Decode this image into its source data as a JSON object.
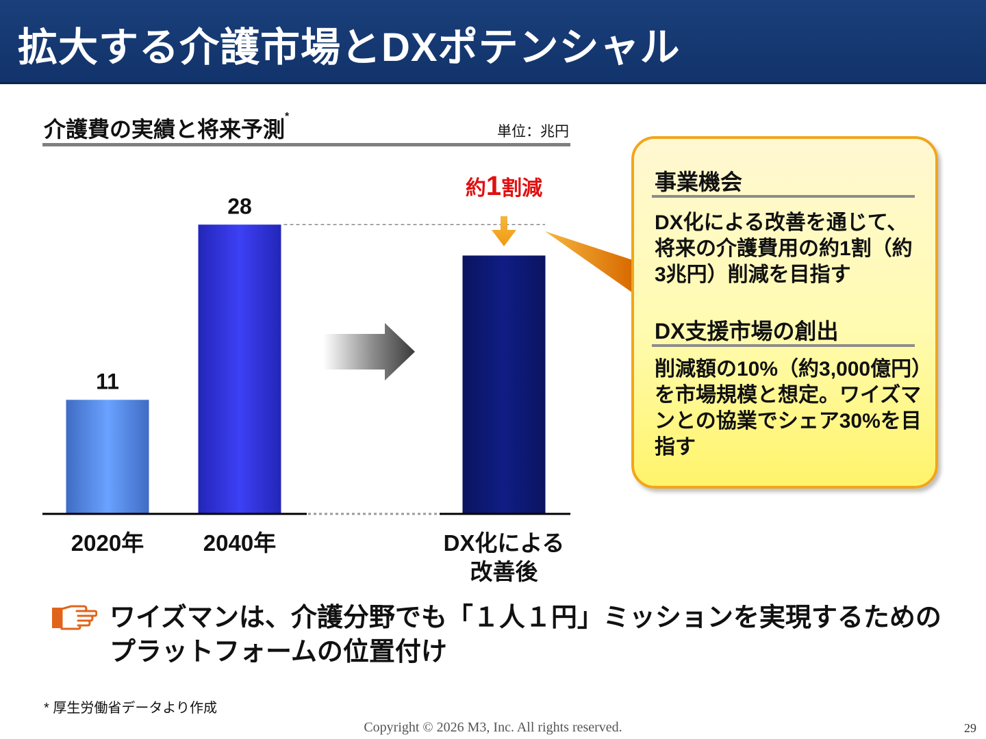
{
  "slide": {
    "title": "拡大する介護市場とDXポテンシャル",
    "page_number": "29",
    "copyright": "Copyright © 2026  M3, Inc.  All rights reserved.",
    "footnote": "*  厚生労働省データより作成",
    "header_color": "#173b74"
  },
  "chart_panel": {
    "title": "介護費の実績と将来予測",
    "title_mark": "*",
    "unit": "単位：兆円"
  },
  "chart_data": {
    "type": "bar",
    "categories": [
      "2020年",
      "2040年",
      "DX化による改善後"
    ],
    "category_lines": [
      [
        "2020年"
      ],
      [
        "2040年"
      ],
      [
        "DX化による",
        "改善後"
      ]
    ],
    "values": [
      11,
      28,
      25
    ],
    "data_labels": [
      "11",
      "28",
      ""
    ],
    "bar_colors": [
      "#5f97ef",
      "#3b3ef0",
      "#0d1a78"
    ],
    "ylim": [
      0,
      32
    ],
    "reduction_annotation": {
      "prefix": "約",
      "number": "1",
      "suffix": "割減"
    }
  },
  "callout": {
    "section1_heading": "事業機会",
    "section1_body": "DX化による改善を通じて、将来の介護費用の約1割（約3兆円）削減を目指す",
    "section2_heading": "DX支援市場の創出",
    "section2_body": "削減額の10%（約3,000億円）を市場規模と想定。ワイズマンとの協業でシェア30%を目指す"
  },
  "bullet": {
    "icon": "pointing-hand-icon",
    "text": "ワイズマンは、介護分野でも「１人１円」ミッションを実現するためのプラットフォームの位置付け"
  },
  "colors": {
    "accent_red": "#e01010",
    "arrow_orange": "#f4a01c",
    "callout_border": "#f2a51a"
  }
}
